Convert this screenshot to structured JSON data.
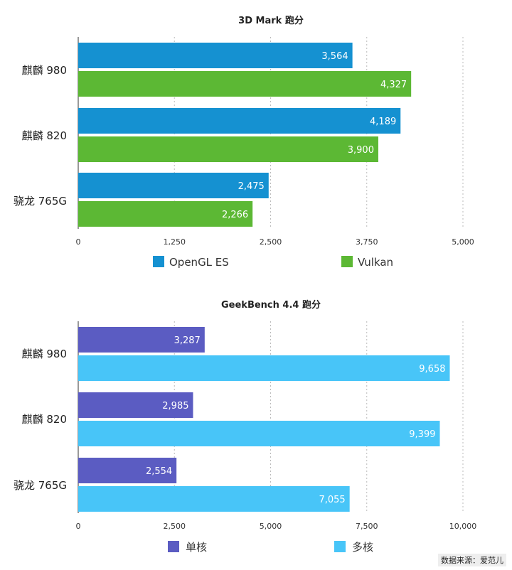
{
  "chart_data": [
    {
      "type": "bar",
      "orientation": "horizontal",
      "title": "3D Mark 跑分",
      "categories": [
        "麒麟 980",
        "麒麟 820",
        "骁龙 765G"
      ],
      "series": [
        {
          "name": "OpenGL ES",
          "color": "#1591d1",
          "values": [
            3564,
            4189,
            2475
          ]
        },
        {
          "name": "Vulkan",
          "color": "#5cb834",
          "values": [
            4327,
            3900,
            2266
          ]
        }
      ],
      "xlim": [
        0,
        5000
      ],
      "xticks": [
        0,
        1250,
        2500,
        3750,
        5000
      ],
      "grid": true,
      "legend": "bottom"
    },
    {
      "type": "bar",
      "orientation": "horizontal",
      "title": "GeekBench 4.4 跑分",
      "categories": [
        "麒麟 980",
        "麒麟 820",
        "骁龙 765G"
      ],
      "series": [
        {
          "name": "单核",
          "color": "#5b5cc2",
          "values": [
            3287,
            2985,
            2554
          ]
        },
        {
          "name": "多核",
          "color": "#48c5f8",
          "values": [
            9658,
            9399,
            7055
          ]
        }
      ],
      "xlim": [
        0,
        10000
      ],
      "xticks": [
        0,
        2500,
        5000,
        7500,
        10000
      ],
      "grid": true,
      "legend": "bottom"
    }
  ],
  "source_label": "数据来源：爱范儿"
}
